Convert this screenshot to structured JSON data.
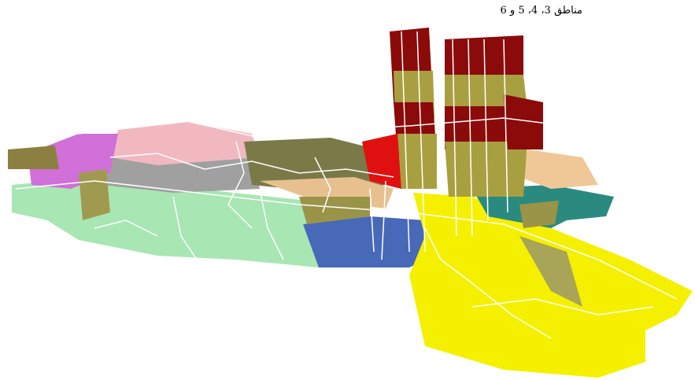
{
  "caption": "مناطق 3، 4، 5 و 6"
}
